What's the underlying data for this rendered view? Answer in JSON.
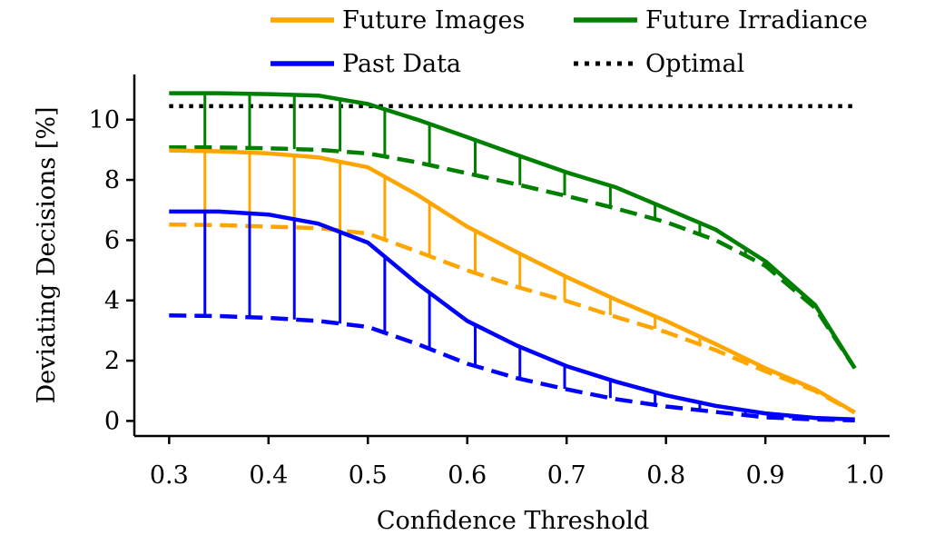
{
  "chart_data": {
    "type": "line",
    "xlabel": "Confidence Threshold",
    "ylabel": "Deviating Decisions [%]",
    "xlim": [
      0.265,
      1.025
    ],
    "ylim": [
      -0.5,
      11.5
    ],
    "xticks": [
      0.3,
      0.4,
      0.5,
      0.6,
      0.7,
      0.8,
      0.9,
      1.0
    ],
    "xtick_labels": [
      "0.3",
      "0.4",
      "0.5",
      "0.6",
      "0.7",
      "0.8",
      "0.9",
      "1.0"
    ],
    "yticks": [
      0,
      2,
      4,
      6,
      8,
      10
    ],
    "ytick_labels": [
      "0",
      "2",
      "4",
      "6",
      "8",
      "10"
    ],
    "grid": false,
    "legend_position": "top",
    "legend": [
      {
        "label": "Future Images",
        "color": "#FFA500",
        "style": "solid"
      },
      {
        "label": "Future Irradiance",
        "color": "#008000",
        "style": "solid"
      },
      {
        "label": "Past Data",
        "color": "#0000FF",
        "style": "solid"
      },
      {
        "label": "Optimal",
        "color": "#000000",
        "style": "dotted"
      }
    ],
    "x": [
      0.3,
      0.35,
      0.4,
      0.45,
      0.5,
      0.55,
      0.6,
      0.65,
      0.7,
      0.75,
      0.8,
      0.85,
      0.9,
      0.95,
      0.99
    ],
    "connector_x": [
      0.336,
      0.381,
      0.426,
      0.472,
      0.517,
      0.562,
      0.608,
      0.653,
      0.698,
      0.744,
      0.789,
      0.834,
      0.88,
      0.925
    ],
    "optimal_value": 10.45,
    "series": [
      {
        "color": "#008000",
        "upper": [
          10.88,
          10.88,
          10.85,
          10.8,
          10.52,
          10.0,
          9.42,
          8.83,
          8.25,
          7.75,
          7.05,
          6.35,
          5.3,
          3.85,
          1.75
        ],
        "lower": [
          9.08,
          9.08,
          9.05,
          9.0,
          8.88,
          8.58,
          8.22,
          7.85,
          7.47,
          7.05,
          6.6,
          6.0,
          5.15,
          3.75,
          1.75
        ]
      },
      {
        "color": "#FFA500",
        "upper": [
          8.98,
          8.95,
          8.88,
          8.75,
          8.42,
          7.5,
          6.45,
          5.6,
          4.78,
          4.02,
          3.32,
          2.55,
          1.75,
          1.05,
          0.28
        ],
        "lower": [
          6.52,
          6.5,
          6.45,
          6.4,
          6.22,
          5.62,
          5.0,
          4.45,
          3.98,
          3.45,
          2.95,
          2.35,
          1.65,
          1.0,
          0.28
        ]
      },
      {
        "color": "#0000FF",
        "upper": [
          6.95,
          6.95,
          6.85,
          6.55,
          5.92,
          4.55,
          3.32,
          2.5,
          1.82,
          1.3,
          0.85,
          0.5,
          0.25,
          0.1,
          0.05
        ],
        "lower": [
          3.5,
          3.48,
          3.42,
          3.32,
          3.12,
          2.55,
          1.9,
          1.42,
          1.05,
          0.72,
          0.48,
          0.3,
          0.12,
          0.05,
          0.02
        ]
      }
    ]
  }
}
